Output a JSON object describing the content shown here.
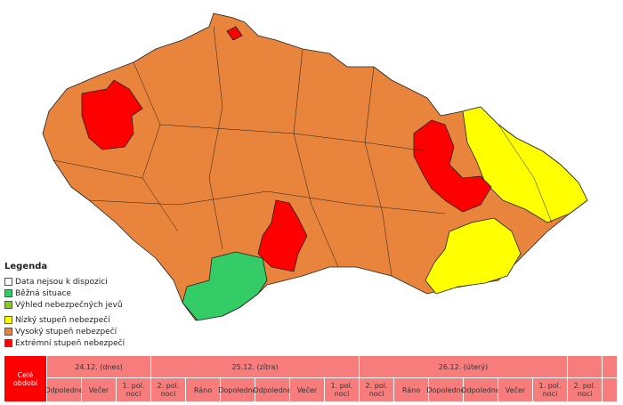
{
  "legend": {
    "title": "Legenda",
    "items": [
      {
        "label": "Data nejsou k dispozici",
        "color": "#ffffff"
      },
      {
        "label": "Běžná situace",
        "color": "#33cc66"
      },
      {
        "label": "Výhled nebezpečných jevů",
        "color": "#88cc22"
      },
      {
        "label": "Nízký stupeň nebezpečí",
        "color": "#ffff00"
      },
      {
        "label": "Vysoký stupeň nebezpečí",
        "color": "#e8843c"
      },
      {
        "label": "Extrémní stupeň nebezpečí",
        "color": "#ff0000"
      }
    ]
  },
  "table": {
    "first_cell": "Celé období",
    "days": [
      {
        "label": "24.12. (dnes)",
        "periods": [
          "Odpoledne",
          "Večer",
          "1. pol. noci"
        ]
      },
      {
        "label": "25.12. (zítra)",
        "periods": [
          "2. pol. noci",
          "Ráno",
          "Dopoledne",
          "Odpoledne",
          "Večer",
          "1. pol. noci"
        ]
      },
      {
        "label": "26.12. (úterý)",
        "periods": [
          "2. pol. noci",
          "Ráno",
          "Dopoledne",
          "Odpoledne",
          "Večer",
          "1. pol. noci"
        ]
      },
      {
        "periods": [
          "2. pol. noci"
        ]
      }
    ]
  }
}
